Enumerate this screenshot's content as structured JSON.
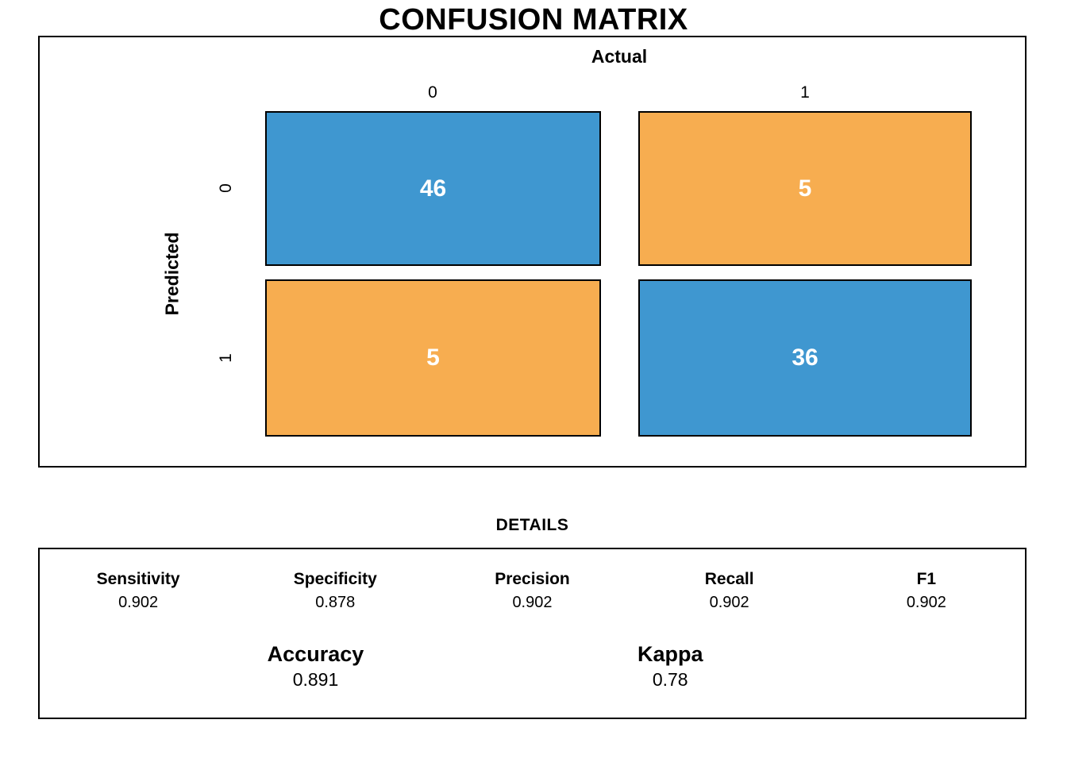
{
  "title": "CONFUSION MATRIX",
  "colors": {
    "match_cell": "#3F97D0",
    "mismatch_cell": "#F7AD50",
    "cell_text": "#FFFFFF",
    "border": "#000000",
    "background": "#FFFFFF"
  },
  "matrix": {
    "x_axis_label": "Actual",
    "y_axis_label": "Predicted",
    "col_labels": [
      "0",
      "1"
    ],
    "row_labels": [
      "0",
      "1"
    ],
    "cells": [
      {
        "predicted": "0",
        "actual": "0",
        "value": "46",
        "color": "#3F97D0"
      },
      {
        "predicted": "0",
        "actual": "1",
        "value": "5",
        "color": "#F7AD50"
      },
      {
        "predicted": "1",
        "actual": "0",
        "value": "5",
        "color": "#F7AD50"
      },
      {
        "predicted": "1",
        "actual": "1",
        "value": "36",
        "color": "#3F97D0"
      }
    ]
  },
  "details": {
    "title": "DETAILS",
    "metrics": [
      {
        "label": "Sensitivity",
        "value": "0.902"
      },
      {
        "label": "Specificity",
        "value": "0.878"
      },
      {
        "label": "Precision",
        "value": "0.902"
      },
      {
        "label": "Recall",
        "value": "0.902"
      },
      {
        "label": "F1",
        "value": "0.902"
      }
    ],
    "overall": [
      {
        "label": "Accuracy",
        "value": "0.891"
      },
      {
        "label": "Kappa",
        "value": "0.78"
      }
    ]
  },
  "chart_data": {
    "type": "heatmap",
    "title": "CONFUSION MATRIX",
    "xlabel": "Actual",
    "ylabel": "Predicted",
    "x_categories": [
      "0",
      "1"
    ],
    "y_categories": [
      "0",
      "1"
    ],
    "values": [
      [
        46,
        5
      ],
      [
        5,
        36
      ]
    ],
    "cell_colors": [
      [
        "#3F97D0",
        "#F7AD50"
      ],
      [
        "#F7AD50",
        "#3F97D0"
      ]
    ],
    "legend_position": "none",
    "grid": false,
    "metrics": {
      "Sensitivity": 0.902,
      "Specificity": 0.878,
      "Precision": 0.902,
      "Recall": 0.902,
      "F1": 0.902,
      "Accuracy": 0.891,
      "Kappa": 0.78
    }
  }
}
